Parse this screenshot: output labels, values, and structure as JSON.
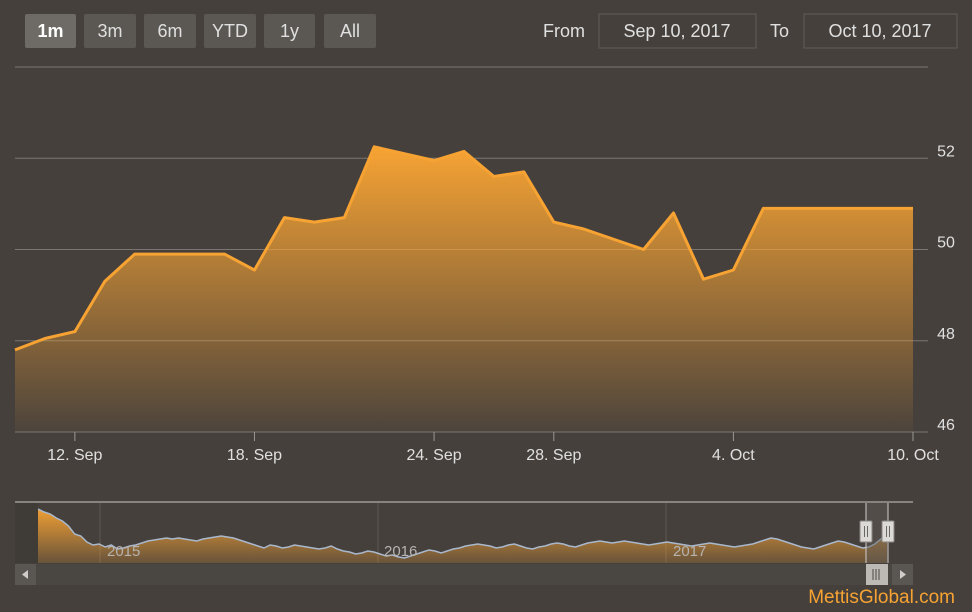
{
  "range_selector": {
    "buttons": [
      "1m",
      "3m",
      "6m",
      "YTD",
      "1y",
      "All"
    ],
    "selected": "1m",
    "from_label": "From",
    "from_value": "Sep 10, 2017",
    "to_label": "To",
    "to_value": "Oct 10, 2017"
  },
  "watermark": "MettisGlobal.com",
  "colors": {
    "background": "#45403c",
    "accent": "#f7a333",
    "button_bg": "#5b5753",
    "button_selected_bg": "#6e6a66",
    "text": "#e0e0e0",
    "navigator_line": "#a9b8cc",
    "watermark": "#f7a333"
  },
  "chart_data": {
    "type": "area",
    "x": [
      "2017-09-10",
      "2017-09-11",
      "2017-09-12",
      "2017-09-13",
      "2017-09-14",
      "2017-09-15",
      "2017-09-17",
      "2017-09-18",
      "2017-09-19",
      "2017-09-20",
      "2017-09-21",
      "2017-09-22",
      "2017-09-24",
      "2017-09-25",
      "2017-09-26",
      "2017-09-27",
      "2017-09-28",
      "2017-09-29",
      "2017-10-01",
      "2017-10-02",
      "2017-10-03",
      "2017-10-04",
      "2017-10-05",
      "2017-10-06",
      "2017-10-08",
      "2017-10-09",
      "2017-10-10"
    ],
    "values": [
      47.8,
      48.05,
      48.2,
      49.3,
      49.9,
      49.9,
      49.9,
      49.55,
      50.7,
      50.6,
      50.7,
      52.25,
      51.95,
      52.15,
      51.6,
      51.7,
      50.6,
      50.45,
      50.0,
      50.8,
      49.35,
      49.55,
      50.9,
      50.9,
      50.9,
      50.9,
      50.9
    ],
    "xticks": [
      "12. Sep",
      "18. Sep",
      "24. Sep",
      "28. Sep",
      "4. Oct",
      "10. Oct"
    ],
    "ytick_labels": [
      "46",
      "48",
      "50",
      "52"
    ],
    "ylim": [
      46,
      54
    ],
    "grid": true,
    "navigator": {
      "year_labels": [
        "2015",
        "2016",
        "2017"
      ],
      "series_values": [
        53.5,
        53.2,
        53.0,
        52.6,
        52.3,
        51.8,
        51.0,
        50.8,
        50.2,
        49.9,
        50.0,
        49.7,
        49.9,
        49.5,
        49.6,
        49.8,
        49.9,
        50.1,
        50.3,
        50.4,
        50.5,
        50.6,
        50.5,
        50.6,
        50.5,
        50.4,
        50.3,
        50.5,
        50.6,
        50.7,
        50.8,
        50.7,
        50.6,
        50.4,
        50.2,
        50.0,
        49.8,
        49.6,
        49.9,
        49.8,
        49.6,
        49.7,
        49.9,
        49.8,
        49.7,
        49.6,
        49.5,
        49.6,
        49.8,
        49.5,
        49.3,
        49.2,
        49.0,
        49.1,
        49.3,
        49.2,
        49.0,
        48.8,
        48.9,
        48.7,
        48.6,
        48.8,
        49.0,
        49.2,
        49.4,
        49.3,
        49.1,
        49.3,
        49.5,
        49.6,
        49.8,
        49.9,
        50.0,
        49.9,
        49.8,
        49.6,
        49.7,
        49.9,
        50.0,
        49.8,
        49.6,
        49.5,
        49.7,
        49.8,
        50.0,
        50.1,
        50.0,
        49.8,
        49.7,
        49.9,
        50.1,
        50.2,
        50.3,
        50.2,
        50.1,
        50.2,
        50.3,
        50.2,
        50.1,
        50.0,
        49.9,
        50.0,
        50.1,
        50.2,
        50.1,
        50.0,
        49.9,
        49.8,
        49.9,
        50.0,
        50.1,
        50.0,
        49.9,
        49.8,
        49.7,
        49.8,
        49.9,
        50.0,
        50.2,
        50.4,
        50.6,
        50.5,
        50.3,
        50.1,
        49.9,
        49.7,
        49.6,
        49.5,
        49.7,
        49.9,
        50.1,
        50.3,
        50.2,
        50.0,
        49.8,
        49.6,
        49.7,
        50.0,
        50.5,
        50.9
      ]
    }
  }
}
